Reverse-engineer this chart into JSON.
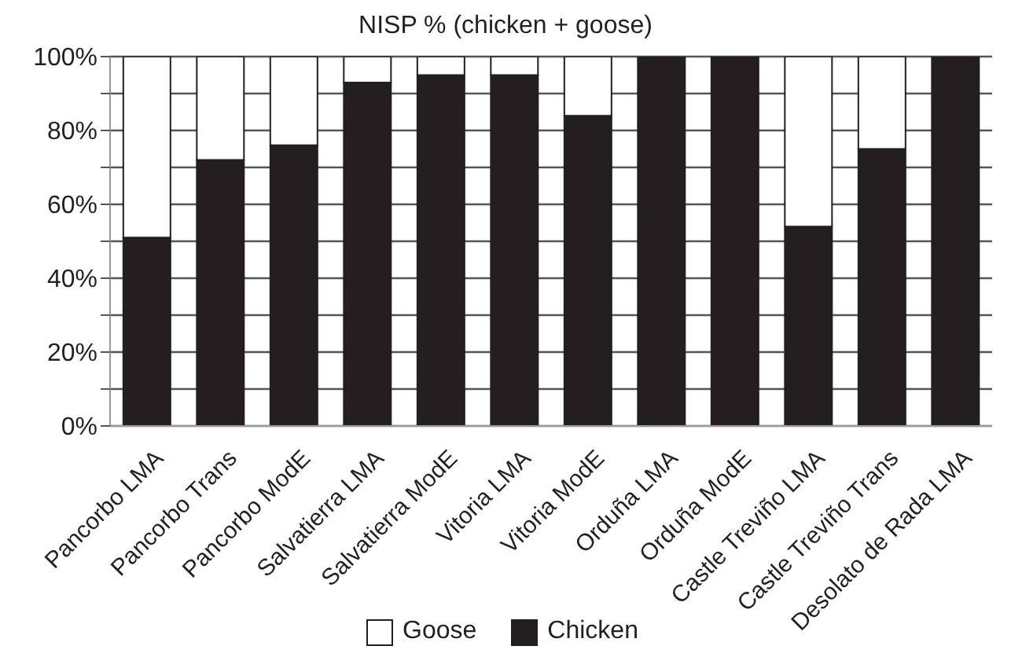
{
  "chart_data": {
    "type": "bar",
    "title": "NISP % (chicken + goose)",
    "categories": [
      "Pancorbo LMA",
      "Pancorbo Trans",
      "Pancorbo ModE",
      "Salvatierra LMA",
      "Salvatierra ModE",
      "Vitoria LMA",
      "Vitoria ModE",
      "Orduña LMA",
      "Orduña ModE",
      "Castle Treviño LMA",
      "Castle Treviño Trans",
      "Desolato de Rada LMA"
    ],
    "series": [
      {
        "name": "Chicken",
        "color": "#231f20",
        "values": [
          51,
          72,
          76,
          93,
          95,
          95,
          84,
          100,
          100,
          54,
          75,
          100
        ]
      },
      {
        "name": "Goose",
        "color": "#ffffff",
        "values": [
          49,
          28,
          24,
          7,
          5,
          5,
          16,
          0,
          0,
          46,
          25,
          0
        ]
      }
    ],
    "stacked": true,
    "ylim": [
      0,
      100
    ],
    "yticks": [
      {
        "value": 0,
        "label": "0%"
      },
      {
        "value": 10,
        "label": null
      },
      {
        "value": 20,
        "label": "20%"
      },
      {
        "value": 30,
        "label": null
      },
      {
        "value": 40,
        "label": "40%"
      },
      {
        "value": 50,
        "label": null
      },
      {
        "value": 60,
        "label": "60%"
      },
      {
        "value": 70,
        "label": null
      },
      {
        "value": 80,
        "label": "80%"
      },
      {
        "value": 90,
        "label": null
      },
      {
        "value": 100,
        "label": "100%"
      }
    ],
    "grid": "y",
    "legend": "bottom"
  }
}
